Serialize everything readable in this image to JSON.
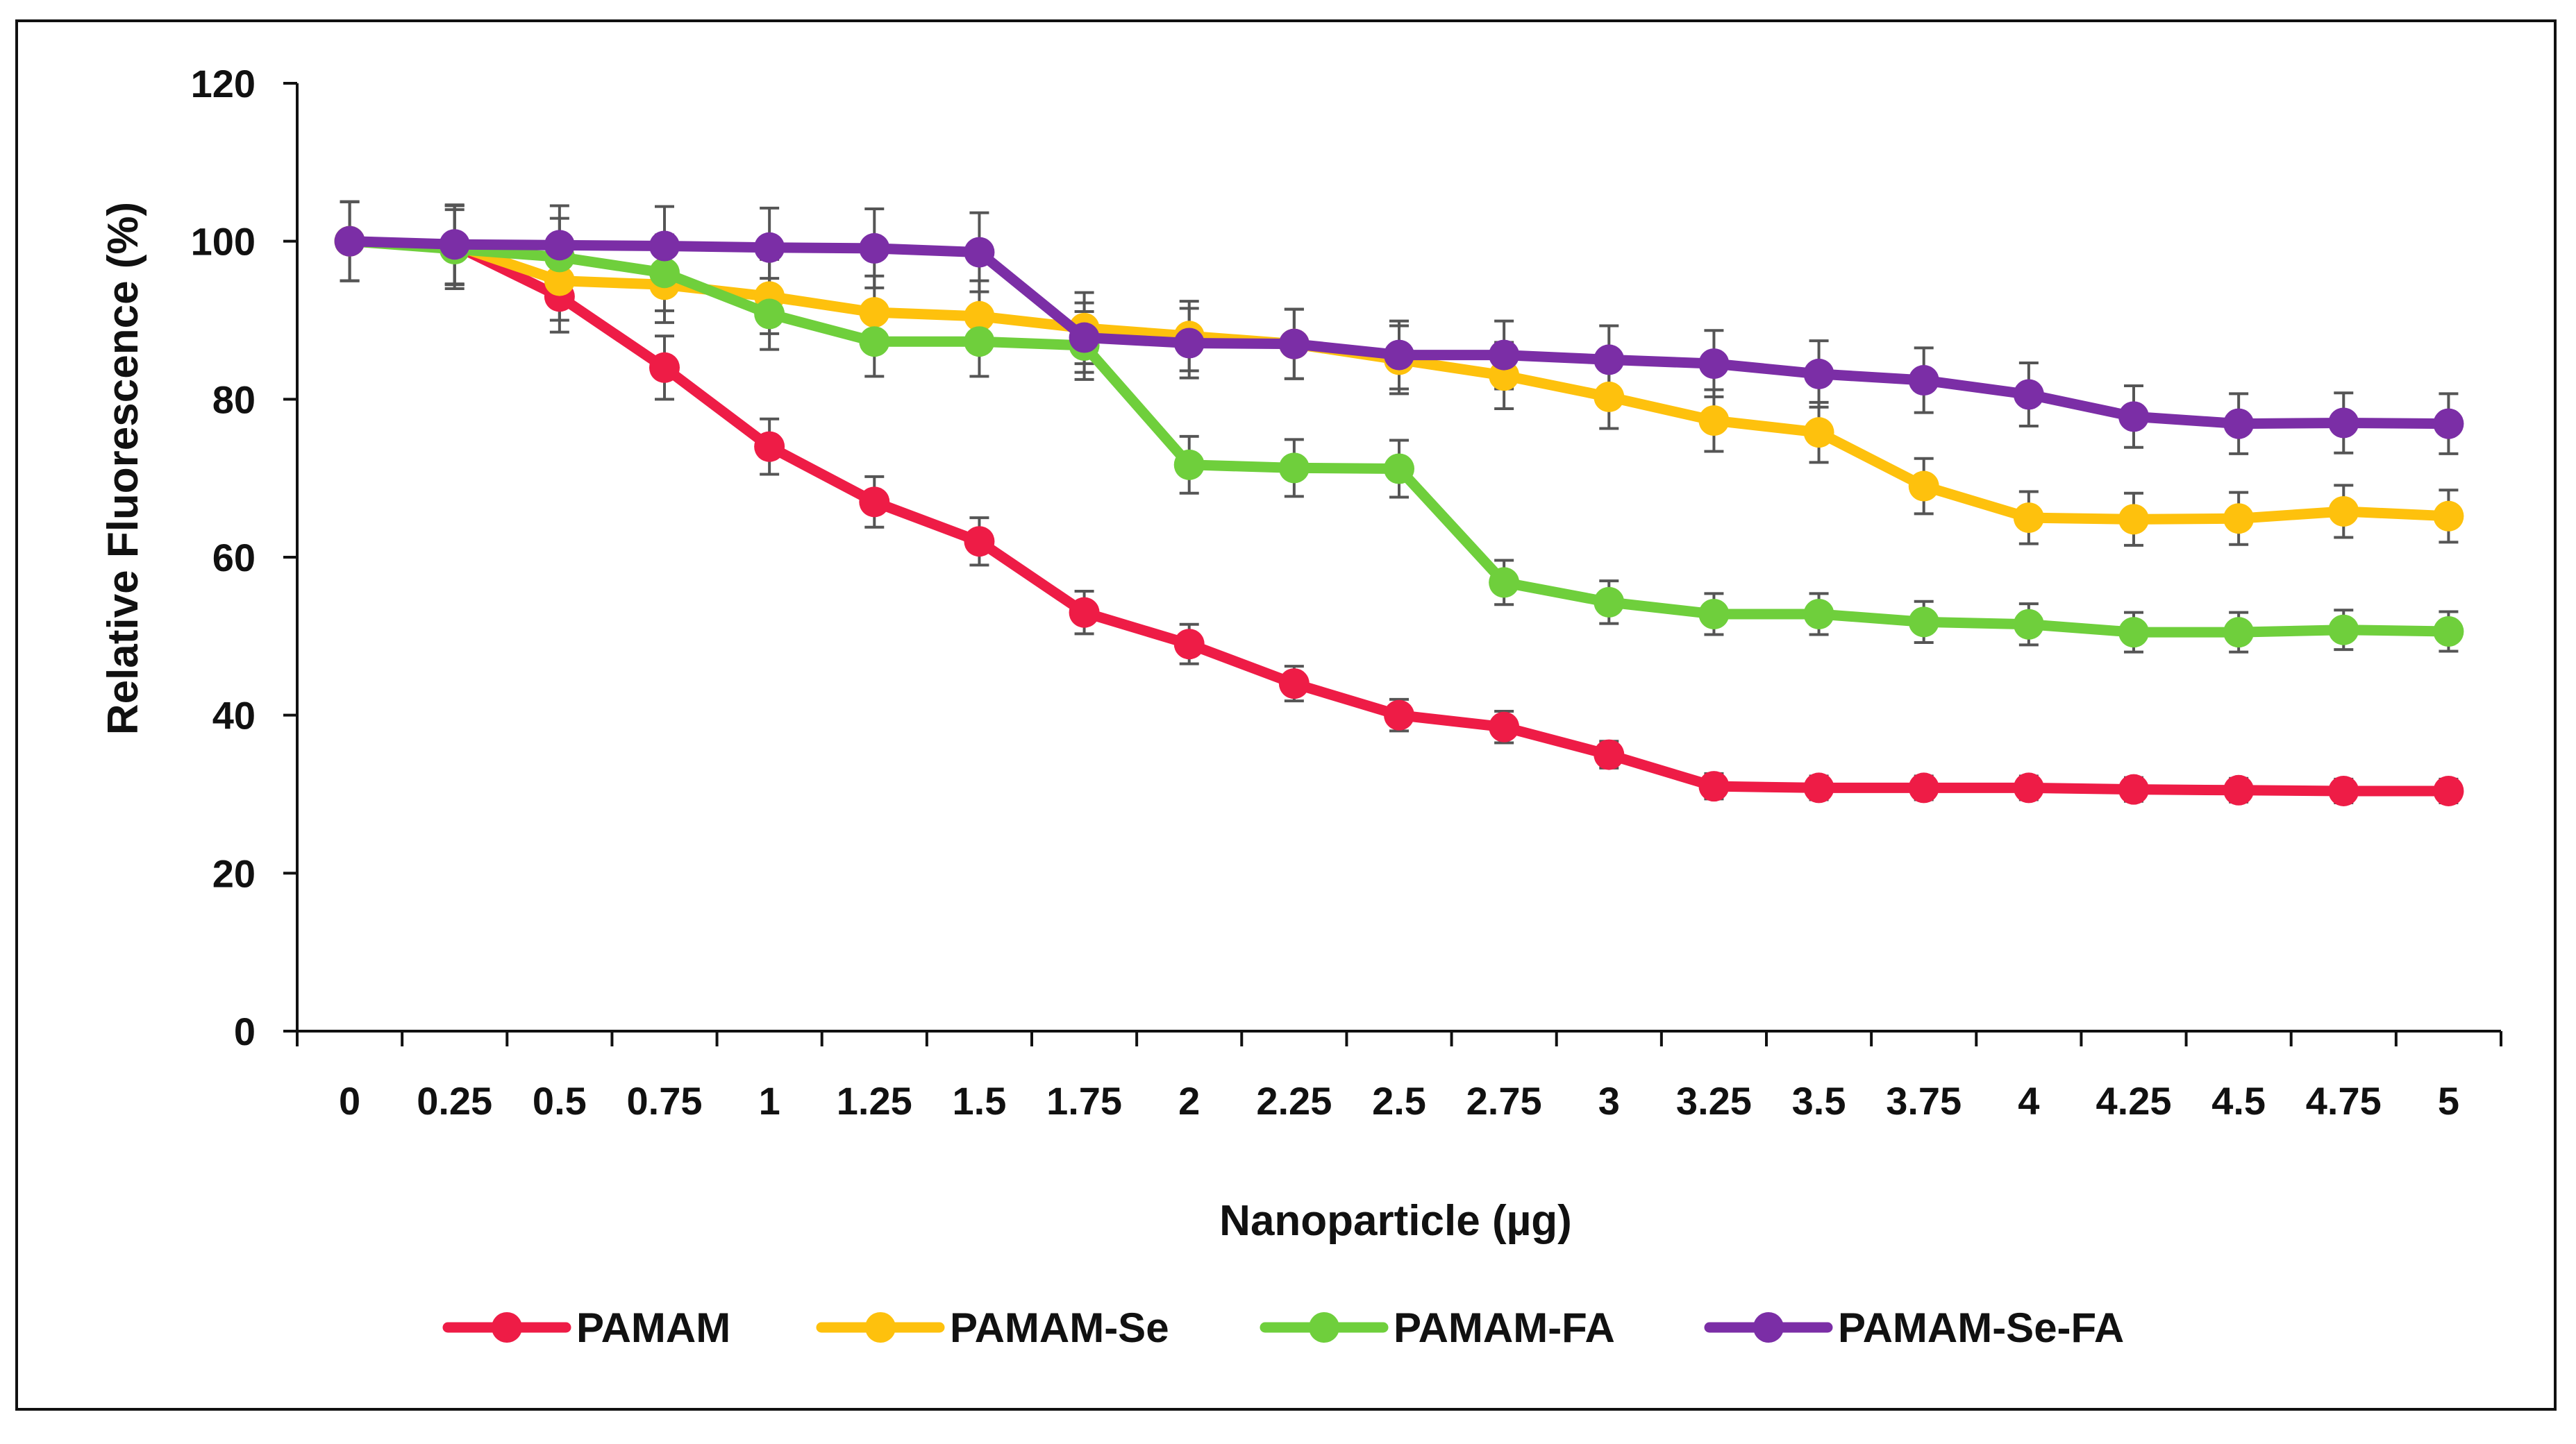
{
  "chart_data": {
    "type": "line",
    "title": "",
    "xlabel": "Nanoparticle (µg)",
    "ylabel": "Relative Fluorescence (%)",
    "ylim": [
      0,
      120
    ],
    "yticks": [
      "0",
      "20",
      "40",
      "60",
      "80",
      "100",
      "120"
    ],
    "categories": [
      "0",
      "0.25",
      "0.5",
      "0.75",
      "1",
      "1.25",
      "1.5",
      "1.75",
      "2",
      "2.25",
      "2.5",
      "2.75",
      "3",
      "3.25",
      "3.5",
      "3.75",
      "4",
      "4.25",
      "4.5",
      "4.75",
      "5"
    ],
    "legend_position": "bottom",
    "grid": false,
    "series": [
      {
        "name": "PAMAM",
        "color": "#ee1c46",
        "values": [
          100,
          99.5,
          93,
          84,
          74,
          67,
          62,
          53,
          49,
          44,
          40,
          38.5,
          35,
          31,
          30.8,
          30.8,
          30.8,
          30.6,
          30.5,
          30.4,
          30.4
        ],
        "errors": [
          5,
          5,
          4.5,
          4,
          3.5,
          3.2,
          3,
          2.7,
          2.5,
          2.2,
          2,
          2,
          1.7,
          1.6,
          1.5,
          1.5,
          1.5,
          1.5,
          1.5,
          1.5,
          1.5
        ]
      },
      {
        "name": "PAMAM-Se",
        "color": "#fec10d",
        "values": [
          100,
          99.5,
          95,
          94.5,
          93,
          91,
          90.5,
          89,
          88,
          87,
          85,
          83,
          80.3,
          77.3,
          75.8,
          69,
          65,
          64.8,
          64.9,
          65.8,
          65.2
        ],
        "errors": [
          5,
          5,
          5,
          4.8,
          4.7,
          4.6,
          4.5,
          4.5,
          4.4,
          4.4,
          4.3,
          4.2,
          4,
          3.9,
          3.8,
          3.5,
          3.3,
          3.3,
          3.3,
          3.3,
          3.3
        ]
      },
      {
        "name": "PAMAM-FA",
        "color": "#6fcf3c",
        "values": [
          100,
          99,
          98,
          96,
          90.8,
          87.3,
          87.3,
          86.8,
          71.7,
          71.3,
          71.2,
          56.8,
          54.3,
          52.8,
          52.8,
          51.8,
          51.5,
          50.5,
          50.5,
          50.8,
          50.6
        ],
        "errors": [
          5,
          5,
          4.9,
          4.8,
          4.5,
          4.4,
          4.4,
          4.3,
          3.6,
          3.6,
          3.6,
          2.8,
          2.7,
          2.6,
          2.6,
          2.6,
          2.6,
          2.5,
          2.5,
          2.5,
          2.5
        ]
      },
      {
        "name": "PAMAM-Se-FA",
        "color": "#7b2ea6",
        "values": [
          100,
          99.6,
          99.5,
          99.4,
          99.2,
          99.1,
          98.6,
          87.8,
          87.1,
          87,
          85.6,
          85.6,
          85,
          84.5,
          83.2,
          82.4,
          80.6,
          77.8,
          76.9,
          77,
          76.9
        ],
        "errors": [
          5,
          5,
          5,
          5,
          5,
          5,
          5,
          4.4,
          4.4,
          4.4,
          4.3,
          4.3,
          4.3,
          4.2,
          4.2,
          4.1,
          4,
          3.9,
          3.8,
          3.8,
          3.8
        ]
      }
    ]
  }
}
